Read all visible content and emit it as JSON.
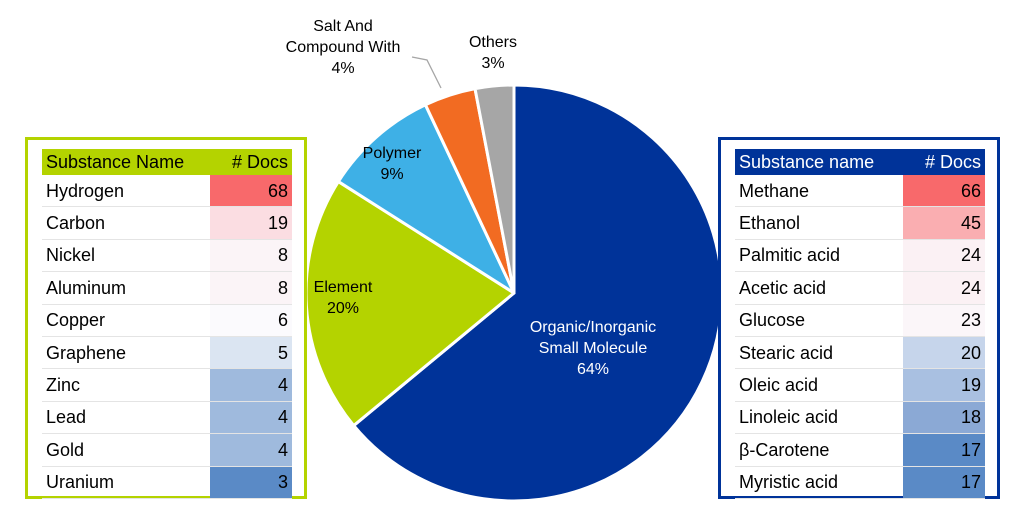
{
  "chart_data": {
    "type": "pie",
    "slices": [
      {
        "label": "Organic/Inorganic Small Molecule",
        "lines": [
          "Organic/Inorganic",
          "Small Molecule"
        ],
        "pct_label": "64%",
        "value": 64,
        "color": "#003399",
        "text_color": "#ffffff"
      },
      {
        "label": "Element",
        "lines": [
          "Element"
        ],
        "pct_label": "20%",
        "value": 20,
        "color": "#b4d300",
        "text_color": "#000000"
      },
      {
        "label": "Polymer",
        "lines": [
          "Polymer"
        ],
        "pct_label": "9%",
        "value": 9,
        "color": "#3eb0e6",
        "text_color": "#000000"
      },
      {
        "label": "Salt And Compound With",
        "lines": [
          "Salt And",
          "Compound With"
        ],
        "pct_label": "4%",
        "value": 4,
        "color": "#f26b22",
        "text_color": "#000000"
      },
      {
        "label": "Others",
        "lines": [
          "Others"
        ],
        "pct_label": "3%",
        "value": 3,
        "color": "#a6a6a6",
        "text_color": "#000000"
      }
    ]
  },
  "left_table": {
    "header_name": "Substance Name",
    "header_docs": "# Docs",
    "rows": [
      {
        "name": "Hydrogen",
        "docs": "68",
        "color": "#f8696b"
      },
      {
        "name": "Carbon",
        "docs": "19",
        "color": "#fbdde2"
      },
      {
        "name": "Nickel",
        "docs": "8",
        "color": "#fbf4f7"
      },
      {
        "name": "Aluminum",
        "docs": "8",
        "color": "#fbf4f7"
      },
      {
        "name": "Copper",
        "docs": "6",
        "color": "#fbfafd"
      },
      {
        "name": "Graphene",
        "docs": "5",
        "color": "#dbe5f2"
      },
      {
        "name": "Zinc",
        "docs": "4",
        "color": "#9fbadd"
      },
      {
        "name": "Lead",
        "docs": "4",
        "color": "#9fbadd"
      },
      {
        "name": "Gold",
        "docs": "4",
        "color": "#9fbadd"
      },
      {
        "name": "Uranium",
        "docs": "3",
        "color": "#5a8ac6"
      }
    ]
  },
  "right_table": {
    "header_name": "Substance name",
    "header_docs": "# Docs",
    "rows": [
      {
        "name": "Methane",
        "docs": "66",
        "color": "#f8696b"
      },
      {
        "name": "Ethanol",
        "docs": "45",
        "color": "#faaeb1"
      },
      {
        "name": "Palmitic acid",
        "docs": "24",
        "color": "#fbf1f4"
      },
      {
        "name": "Acetic acid",
        "docs": "24",
        "color": "#fbf1f4"
      },
      {
        "name": "Glucose",
        "docs": "23",
        "color": "#fbf6f9"
      },
      {
        "name": "Stearic acid",
        "docs": "20",
        "color": "#c6d5eb"
      },
      {
        "name": "Oleic acid",
        "docs": "19",
        "color": "#a9c0e1"
      },
      {
        "name": "Linoleic acid",
        "docs": "18",
        "color": "#8ba9d5"
      },
      {
        "name": "β-Carotene",
        "docs": "17",
        "color": "#5a8ac6"
      },
      {
        "name": "Myristic acid",
        "docs": "17",
        "color": "#5a8ac6"
      }
    ]
  }
}
